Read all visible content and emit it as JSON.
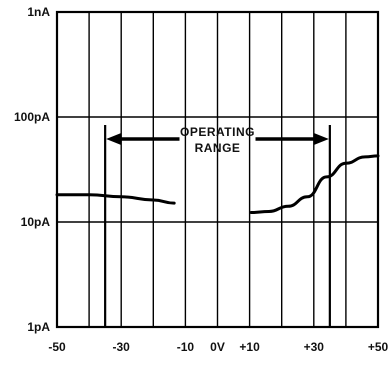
{
  "chart_data": {
    "type": "line",
    "title": "",
    "xlabel": "",
    "ylabel": "",
    "xlim": [
      -50,
      50
    ],
    "ylim_log10": [
      -12,
      -9
    ],
    "y_scale": "log",
    "grid": true,
    "x_tick_labels": [
      {
        "value": -50,
        "label": "-50"
      },
      {
        "value": -30,
        "label": "-30"
      },
      {
        "value": -10,
        "label": "-10"
      },
      {
        "value": 0,
        "label": "0V"
      },
      {
        "value": 10,
        "label": "+10"
      },
      {
        "value": 30,
        "label": "+30"
      },
      {
        "value": 50,
        "label": "+50"
      }
    ],
    "y_tick_labels": [
      {
        "value": -9,
        "label": "1nA"
      },
      {
        "value": -10,
        "label": "100pA"
      },
      {
        "value": -11,
        "label": "10pA"
      },
      {
        "value": -12,
        "label": "1pA"
      }
    ],
    "series": [
      {
        "points_log10": [
          [
            -50,
            -10.74
          ],
          [
            -40,
            -10.74
          ],
          [
            -30,
            -10.76
          ],
          [
            -20,
            -10.79
          ],
          [
            -13.5,
            -10.82
          ]
        ]
      },
      {
        "points_log10": [
          [
            10.5,
            -10.91
          ],
          [
            16,
            -10.9
          ],
          [
            22,
            -10.85
          ],
          [
            28,
            -10.76
          ],
          [
            34,
            -10.57
          ],
          [
            40,
            -10.44
          ],
          [
            46,
            -10.38
          ],
          [
            50,
            -10.37
          ]
        ]
      }
    ],
    "annotations": {
      "operating_range_text_line1": "OPERATING",
      "operating_range_text_line2": "RANGE",
      "operating_range_start": -35,
      "operating_range_end": 35
    }
  }
}
